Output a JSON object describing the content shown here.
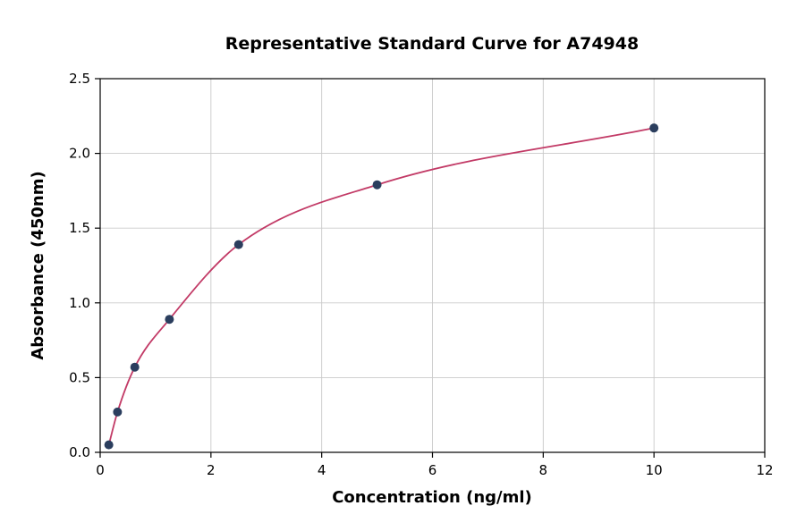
{
  "chart_data": {
    "type": "scatter",
    "title": "Representative Standard Curve for A74948",
    "xlabel": "Concentration (ng/ml)",
    "ylabel": "Absorbance (450nm)",
    "xlim": [
      0,
      12
    ],
    "ylim": [
      0,
      2.5
    ],
    "xticks": [
      0,
      2,
      4,
      6,
      8,
      10,
      12
    ],
    "xtick_labels": [
      "0",
      "2",
      "4",
      "6",
      "8",
      "10",
      "12"
    ],
    "yticks": [
      0,
      0.5,
      1.0,
      1.5,
      2.0,
      2.5
    ],
    "ytick_labels": [
      "0.0",
      "0.5",
      "1.0",
      "1.5",
      "2.0",
      "2.5"
    ],
    "grid": true,
    "legend": null,
    "series": [
      {
        "name": "standards",
        "x": [
          0.156,
          0.313,
          0.625,
          1.25,
          2.5,
          5,
          10
        ],
        "y": [
          0.05,
          0.27,
          0.57,
          0.89,
          1.39,
          1.79,
          2.17
        ],
        "marker_color": "#2b3e5e",
        "marker_radius": 5
      }
    ],
    "fit_curve": {
      "style": "smooth-through-points",
      "color": "#c23a66",
      "stroke_width": 1.8
    }
  }
}
